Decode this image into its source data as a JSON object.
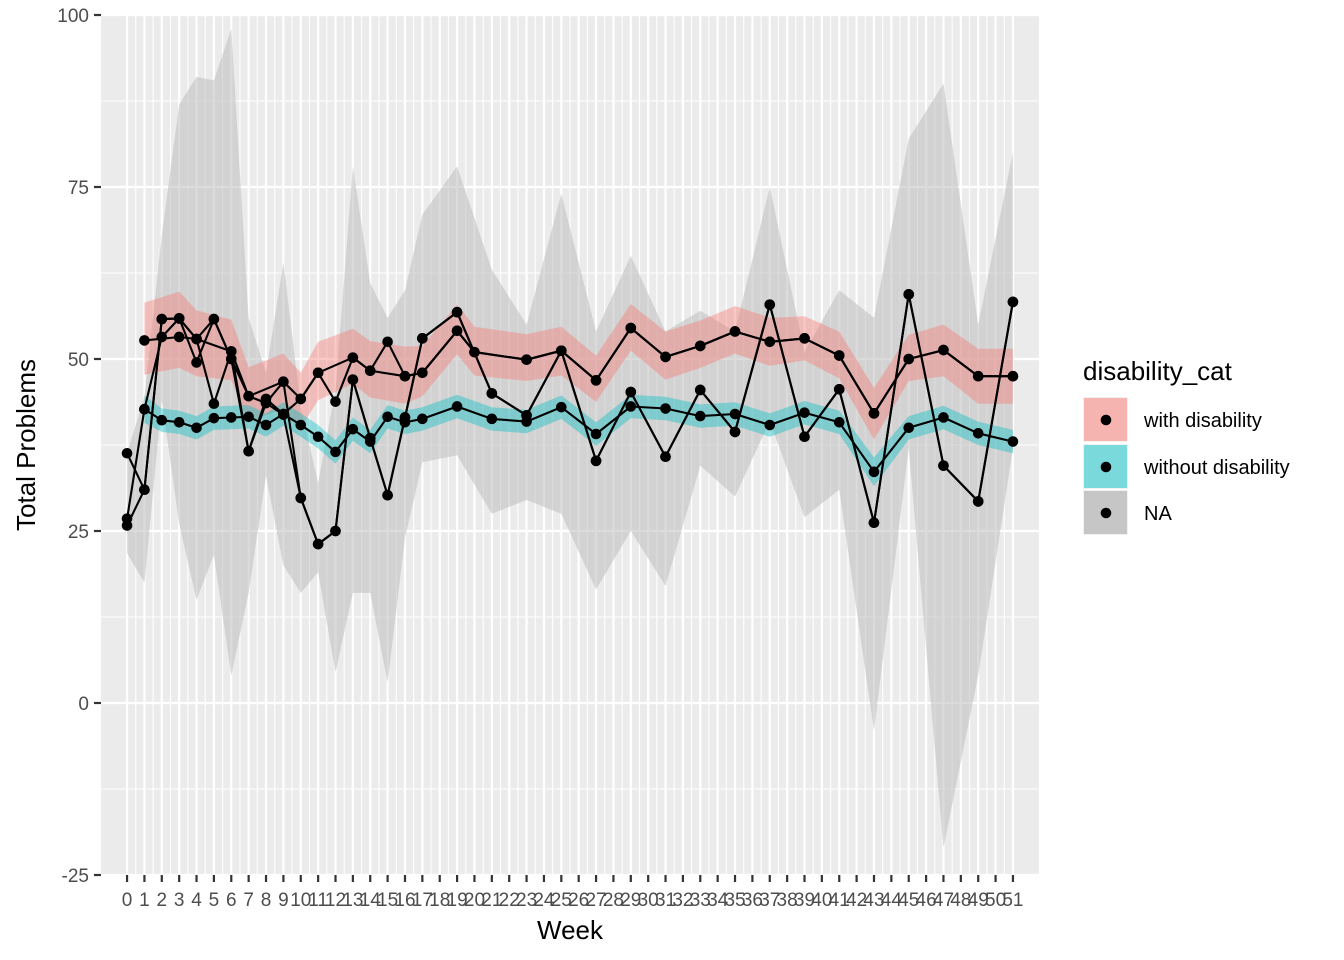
{
  "chart_data": {
    "type": "line",
    "xlabel": "Week",
    "ylabel": "Total Problems",
    "ylim": [
      -25,
      100
    ],
    "xlim": [
      -1.5,
      52.5
    ],
    "yticks": [
      -25,
      0,
      25,
      50,
      75,
      100
    ],
    "x": [
      0,
      1,
      2,
      3,
      4,
      5,
      6,
      7,
      8,
      9,
      10,
      11,
      12,
      13,
      14,
      15,
      16,
      17,
      18,
      19,
      20,
      21,
      22,
      23,
      24,
      25,
      26,
      27,
      28,
      29,
      30,
      31,
      32,
      33,
      34,
      35,
      36,
      37,
      38,
      39,
      40,
      41,
      42,
      43,
      44,
      45,
      46,
      47,
      48,
      49,
      50,
      51
    ],
    "legend": {
      "title": "disability_cat",
      "position": "right"
    },
    "grid": true,
    "colors": {
      "panel": "#EBEBEB",
      "grid": "#FFFFFF",
      "with_disability_ribbon": "#F8766D",
      "without_disability_ribbon": "#00BFC4",
      "na_ribbon": "#BEBEBE",
      "line": "#000000"
    },
    "series": [
      {
        "name": "with disability",
        "color": "#F8766D",
        "points": [
          [
            1,
            52.7
          ],
          [
            3,
            53.2
          ],
          [
            4,
            52.9
          ],
          [
            6,
            51.1
          ],
          [
            7,
            44.6
          ],
          [
            9,
            46.7
          ],
          [
            10,
            44.2
          ],
          [
            11,
            48
          ],
          [
            13,
            50.2
          ],
          [
            14,
            48.3
          ],
          [
            16,
            47.5
          ],
          [
            17,
            48
          ],
          [
            19,
            54.1
          ],
          [
            20,
            51
          ],
          [
            23,
            49.9
          ],
          [
            25,
            51.2
          ],
          [
            27,
            46.9
          ],
          [
            29,
            54.5
          ],
          [
            31,
            50.3
          ],
          [
            33,
            51.9
          ],
          [
            35,
            54
          ],
          [
            37,
            52.5
          ],
          [
            39,
            53
          ],
          [
            41,
            50.5
          ],
          [
            43,
            42.1
          ],
          [
            45,
            50
          ],
          [
            47,
            51.3
          ],
          [
            49,
            47.5
          ],
          [
            51,
            47.5
          ]
        ],
        "ribbon": [
          [
            1,
            47.7,
            58.2
          ],
          [
            3,
            48.7,
            59.8
          ],
          [
            4,
            47.5,
            57.1
          ],
          [
            6,
            46.9,
            55.7
          ],
          [
            7,
            40.9,
            48.8
          ],
          [
            9,
            42.8,
            50.8
          ],
          [
            10,
            40,
            48
          ],
          [
            11,
            44,
            52.5
          ],
          [
            13,
            46.4,
            54.4
          ],
          [
            14,
            44.4,
            52.6
          ],
          [
            16,
            43.5,
            51.8
          ],
          [
            17,
            44.6,
            51.9
          ],
          [
            19,
            50.7,
            57.9
          ],
          [
            20,
            47.6,
            54.7
          ],
          [
            23,
            46.8,
            53.6
          ],
          [
            25,
            47.6,
            54.7
          ],
          [
            27,
            43.8,
            50.5
          ],
          [
            29,
            51.2,
            58
          ],
          [
            31,
            47,
            54
          ],
          [
            33,
            48.7,
            55.6
          ],
          [
            35,
            50.8,
            57.7
          ],
          [
            37,
            49,
            56
          ],
          [
            39,
            49.8,
            56.2
          ],
          [
            41,
            47.2,
            54
          ],
          [
            43,
            38.3,
            45.8
          ],
          [
            45,
            46.8,
            53.5
          ],
          [
            47,
            47.5,
            55
          ],
          [
            49,
            43.5,
            51.5
          ],
          [
            51,
            43.5,
            51.5
          ]
        ]
      },
      {
        "name": "without disability",
        "color": "#00BFC4",
        "points": [
          [
            1,
            42.7
          ],
          [
            2,
            41.1
          ],
          [
            3,
            40.8
          ],
          [
            4,
            40
          ],
          [
            5,
            41.4
          ],
          [
            6,
            41.5
          ],
          [
            7,
            41.6
          ],
          [
            8,
            40.4
          ],
          [
            9,
            42
          ],
          [
            10,
            40.4
          ],
          [
            11,
            38.7
          ],
          [
            12,
            36.5
          ],
          [
            13,
            39.8
          ],
          [
            14,
            38
          ],
          [
            15,
            41.6
          ],
          [
            16,
            40.8
          ],
          [
            17,
            41.3
          ],
          [
            19,
            43.1
          ],
          [
            21,
            41.3
          ],
          [
            23,
            40.9
          ],
          [
            25,
            43
          ],
          [
            27,
            39.1
          ],
          [
            29,
            43.1
          ],
          [
            31,
            42.8
          ],
          [
            33,
            41.7
          ],
          [
            35,
            42
          ],
          [
            37,
            40.4
          ],
          [
            39,
            42.2
          ],
          [
            41,
            40.8
          ],
          [
            43,
            33.6
          ],
          [
            45,
            40
          ],
          [
            47,
            41.5
          ],
          [
            49,
            39.2
          ],
          [
            51,
            38
          ]
        ],
        "ribbon": [
          [
            1,
            40.7,
            44.7
          ],
          [
            2,
            39.4,
            42.8
          ],
          [
            3,
            39.1,
            42.5
          ],
          [
            4,
            38.3,
            41.7
          ],
          [
            5,
            39.7,
            43.1
          ],
          [
            6,
            39.8,
            43.2
          ],
          [
            7,
            39.9,
            43.3
          ],
          [
            8,
            38.7,
            42.1
          ],
          [
            9,
            40.3,
            43.7
          ],
          [
            10,
            38.7,
            42.1
          ],
          [
            11,
            37,
            40.4
          ],
          [
            12,
            34.8,
            38.2
          ],
          [
            13,
            38.1,
            41.5
          ],
          [
            14,
            36.3,
            39.7
          ],
          [
            15,
            39.9,
            43.3
          ],
          [
            16,
            39.1,
            42.5
          ],
          [
            17,
            39.6,
            43
          ],
          [
            19,
            41.4,
            44.8
          ],
          [
            21,
            39.6,
            43
          ],
          [
            23,
            39.2,
            42.6
          ],
          [
            25,
            41.3,
            44.7
          ],
          [
            27,
            37.4,
            40.8
          ],
          [
            29,
            41.4,
            44.8
          ],
          [
            31,
            41.1,
            44.5
          ],
          [
            33,
            40,
            43.4
          ],
          [
            35,
            40.3,
            43.7
          ],
          [
            37,
            38.7,
            42.1
          ],
          [
            39,
            40.5,
            43.9
          ],
          [
            41,
            39.1,
            42.5
          ],
          [
            43,
            31.5,
            35.7
          ],
          [
            45,
            38.3,
            41.7
          ],
          [
            47,
            39.8,
            43.2
          ],
          [
            49,
            37.5,
            40.9
          ],
          [
            51,
            36.3,
            39.7
          ]
        ]
      },
      {
        "name": "NA",
        "color": "#BEBEBE",
        "points": [
          [
            0,
            36.3
          ],
          [
            1,
            31
          ],
          [
            2,
            55.8
          ],
          [
            3,
            55.9
          ],
          [
            4,
            49.5
          ],
          [
            5,
            55.8
          ],
          [
            6,
            50
          ],
          [
            7,
            36.6
          ],
          [
            8,
            43.6
          ],
          [
            9,
            41.9
          ],
          [
            10,
            29.8
          ],
          [
            11,
            23.1
          ],
          [
            12,
            25
          ],
          [
            13,
            47
          ],
          [
            14,
            38.5
          ],
          [
            15,
            30.2
          ],
          [
            16,
            41.5
          ],
          [
            17,
            53
          ],
          [
            19,
            56.8
          ],
          [
            21,
            45
          ],
          [
            23,
            41.8
          ],
          [
            25,
            51.2
          ],
          [
            27,
            35.2
          ],
          [
            29,
            45.2
          ],
          [
            31,
            35.8
          ],
          [
            33,
            45.5
          ],
          [
            35,
            39.4
          ],
          [
            37,
            57.9
          ],
          [
            39,
            38.7
          ],
          [
            41,
            45.6
          ],
          [
            43,
            26.2
          ],
          [
            45,
            59.4
          ],
          [
            47,
            34.5
          ],
          [
            49,
            29.3
          ],
          [
            51,
            58.3
          ]
        ],
        "ribbon": [
          [
            0,
            21.8,
            36.3
          ],
          [
            1,
            17.5,
            44.5
          ],
          [
            2,
            44,
            68
          ],
          [
            3,
            26,
            87
          ],
          [
            4,
            15,
            91
          ],
          [
            5,
            21.5,
            90.5
          ],
          [
            6,
            4,
            98
          ],
          [
            7,
            16,
            56
          ],
          [
            8,
            33,
            48
          ],
          [
            9,
            20,
            64
          ],
          [
            10,
            16,
            43
          ],
          [
            11,
            19,
            32
          ],
          [
            12,
            4.5,
            45.5
          ],
          [
            13,
            16,
            78
          ],
          [
            14,
            16,
            61
          ],
          [
            15,
            3,
            56
          ],
          [
            16,
            24,
            60
          ],
          [
            17,
            35,
            71
          ],
          [
            19,
            36,
            78
          ],
          [
            21,
            27.5,
            63
          ],
          [
            23,
            29.5,
            55
          ],
          [
            25,
            27.5,
            74
          ],
          [
            27,
            16.5,
            54
          ],
          [
            29,
            25,
            65
          ],
          [
            31,
            17,
            54
          ],
          [
            33,
            34.5,
            57
          ],
          [
            35,
            30,
            54
          ],
          [
            37,
            41,
            75
          ],
          [
            39,
            27,
            51
          ],
          [
            41,
            31,
            60
          ],
          [
            43,
            -4,
            56
          ],
          [
            45,
            37,
            82
          ],
          [
            47,
            -21,
            90
          ],
          [
            49,
            4,
            55
          ],
          [
            51,
            37,
            80
          ]
        ]
      },
      {
        "name": "",
        "color": "#000000",
        "points": [
          [
            0,
            26.8
          ],
          [
            1,
            42.7
          ],
          [
            2,
            53.2
          ],
          [
            3,
            55.9
          ],
          [
            4,
            52.9
          ],
          [
            5,
            43.5
          ],
          [
            6,
            51.1
          ],
          [
            7,
            36.6
          ],
          [
            8,
            44.2
          ],
          [
            9,
            42
          ],
          [
            10,
            44.2
          ],
          [
            11,
            48
          ],
          [
            12,
            43.8
          ],
          [
            13,
            50.2
          ],
          [
            14,
            48.3
          ],
          [
            15,
            52.5
          ],
          [
            16,
            47.5
          ],
          [
            17,
            48
          ],
          [
            19,
            54.1
          ],
          [
            20,
            51
          ],
          [
            23,
            49.9
          ],
          [
            25,
            51.2
          ],
          [
            27,
            35.2
          ],
          [
            29,
            45.2
          ],
          [
            31,
            35.8
          ],
          [
            33,
            45.5
          ],
          [
            35,
            39.4
          ],
          [
            37,
            57.9
          ],
          [
            39,
            38.7
          ],
          [
            41,
            45.6
          ],
          [
            43,
            26.2
          ],
          [
            45,
            59.4
          ],
          [
            47,
            34.5
          ],
          [
            49,
            29.3
          ],
          [
            51,
            58.3
          ]
        ]
      },
      {
        "name": "",
        "color": "#000000",
        "points": [
          [
            0,
            25.8
          ],
          [
            1,
            31
          ],
          [
            2,
            55.8
          ],
          [
            3,
            55.9
          ],
          [
            4,
            52.9
          ],
          [
            5,
            55.8
          ],
          [
            6,
            50
          ],
          [
            7,
            44.6
          ],
          [
            8,
            43.6
          ],
          [
            9,
            46.7
          ],
          [
            10,
            29.8
          ],
          [
            11,
            23.1
          ],
          [
            12,
            25
          ],
          [
            13,
            47
          ],
          [
            14,
            38.5
          ],
          [
            15,
            30.2
          ],
          [
            16,
            41.5
          ],
          [
            17,
            53
          ],
          [
            19,
            56.8
          ],
          [
            21,
            45
          ],
          [
            23,
            41.8
          ],
          [
            25,
            51.2
          ],
          [
            27,
            46.9
          ],
          [
            29,
            54.5
          ],
          [
            31,
            50.3
          ],
          [
            33,
            51.9
          ],
          [
            35,
            54
          ],
          [
            37,
            52.5
          ],
          [
            39,
            53
          ],
          [
            41,
            50.5
          ],
          [
            43,
            42.1
          ],
          [
            45,
            50
          ],
          [
            47,
            51.3
          ],
          [
            49,
            47.5
          ],
          [
            51,
            47.5
          ]
        ]
      }
    ]
  }
}
